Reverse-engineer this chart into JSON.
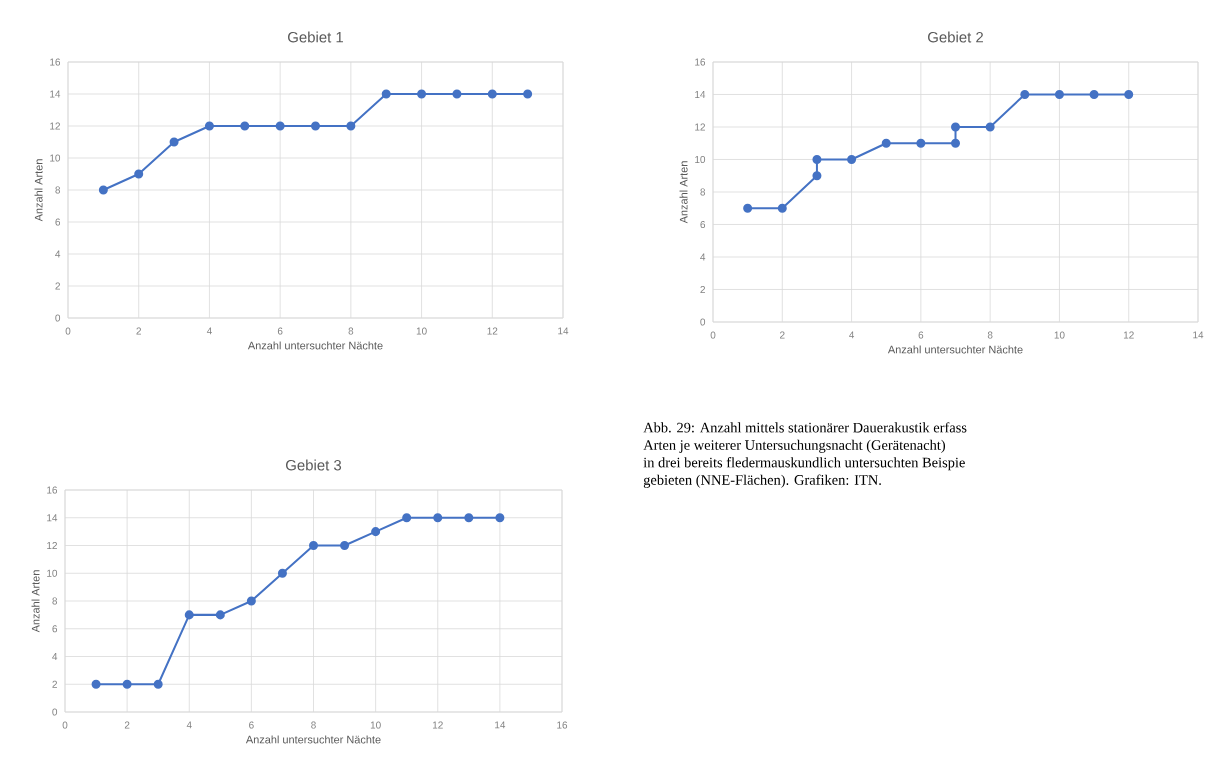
{
  "chart_data": [
    {
      "type": "line",
      "title": "Gebiet 1",
      "xlabel": "Anzahl untersuchter Nächte",
      "ylabel": "Anzahl Arten",
      "xlim": [
        0,
        14
      ],
      "ylim": [
        0,
        16
      ],
      "xticks": [
        0,
        2,
        4,
        6,
        8,
        10,
        12,
        14
      ],
      "yticks": [
        0,
        2,
        4,
        6,
        8,
        10,
        12,
        14,
        16
      ],
      "grid": true,
      "marker": "circle",
      "line_style": "solid",
      "series": [
        {
          "color": "#4472c4",
          "x": [
            1,
            2,
            3,
            4,
            5,
            6,
            7,
            8,
            9,
            10,
            11,
            12,
            13
          ],
          "values": [
            8,
            9,
            11,
            12,
            12,
            12,
            12,
            12,
            14,
            14,
            14,
            14,
            14
          ]
        }
      ]
    },
    {
      "type": "line",
      "title": "Gebiet 2",
      "xlabel": "Anzahl untersuchter Nächte",
      "ylabel": "Anzahl Arten",
      "xlim": [
        0,
        14
      ],
      "ylim": [
        0,
        16
      ],
      "xticks": [
        0,
        2,
        4,
        6,
        8,
        10,
        12,
        14
      ],
      "yticks": [
        0,
        2,
        4,
        6,
        8,
        10,
        12,
        14,
        16
      ],
      "grid": true,
      "marker": "circle",
      "line_style": "solid",
      "series": [
        {
          "color": "#4472c4",
          "x": [
            1,
            2,
            3,
            3,
            4,
            5,
            6,
            7,
            7,
            8,
            9,
            10,
            11,
            12
          ],
          "values": [
            7,
            7,
            9,
            10,
            10,
            11,
            11,
            11,
            12,
            12,
            14,
            14,
            14,
            14
          ]
        }
      ]
    },
    {
      "type": "line",
      "title": "Gebiet 3",
      "xlabel": "Anzahl untersuchter Nächte",
      "ylabel": "Anzahl Arten",
      "xlim": [
        0,
        16
      ],
      "ylim": [
        0,
        16
      ],
      "xticks": [
        0,
        2,
        4,
        6,
        8,
        10,
        12,
        14,
        16
      ],
      "yticks": [
        0,
        2,
        4,
        6,
        8,
        10,
        12,
        14,
        16
      ],
      "grid": true,
      "marker": "circle",
      "line_style": "solid",
      "series": [
        {
          "color": "#4472c4",
          "x": [
            1,
            2,
            3,
            4,
            5,
            6,
            7,
            8,
            9,
            10,
            11,
            12,
            13,
            14
          ],
          "values": [
            2,
            2,
            2,
            7,
            7,
            8,
            10,
            12,
            12,
            13,
            14,
            14,
            14,
            14
          ]
        }
      ]
    },
    {
      "type": "other",
      "annotations": [
        "Abb. 29: Anzahl mittels stationärer Dauerakustik erfass",
        "Arten je weiterer Untersuchungsnacht (Gerätenacht)",
        "in drei bereits fledermauskundlich untersuchten Beispie",
        "gebieten (NNE-Flächen). Grafiken: ITN."
      ]
    }
  ]
}
